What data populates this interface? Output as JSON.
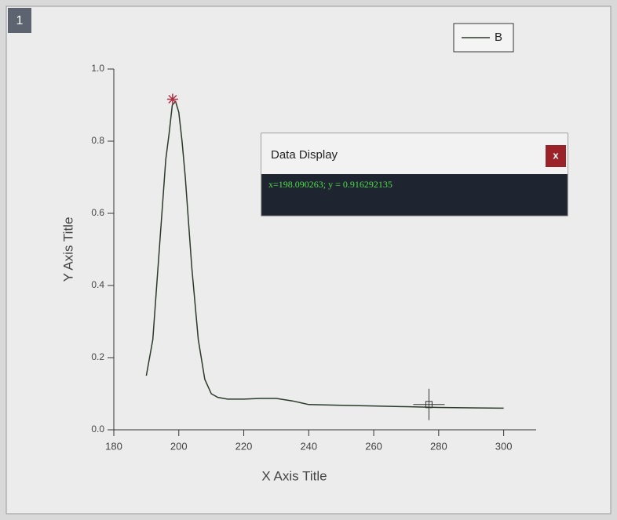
{
  "chart_data": {
    "type": "line",
    "window_tag": "1",
    "x_label": "X Axis Title",
    "y_label": "Y Axis Title",
    "x": [
      190,
      192,
      194,
      196,
      197,
      198,
      199,
      200,
      201,
      202,
      204,
      206,
      208,
      210,
      212,
      215,
      220,
      225,
      230,
      235,
      240,
      250,
      260,
      270,
      280,
      290,
      300
    ],
    "series": [
      {
        "name": "B",
        "color": "#2b3a2b",
        "values": [
          0.15,
          0.25,
          0.5,
          0.75,
          0.82,
          0.9,
          0.91,
          0.88,
          0.8,
          0.7,
          0.45,
          0.25,
          0.14,
          0.1,
          0.09,
          0.085,
          0.085,
          0.087,
          0.087,
          0.08,
          0.07,
          0.068,
          0.066,
          0.064,
          0.062,
          0.061,
          0.06
        ]
      }
    ],
    "xlim": [
      180,
      310
    ],
    "ylim": [
      0,
      1
    ],
    "xticks": [
      180,
      200,
      220,
      240,
      260,
      280,
      300
    ],
    "yticks": [
      {
        "value": 0,
        "label": "0.0"
      },
      0.2,
      0.4,
      0.6,
      0.8,
      {
        "value": 1,
        "label": "1.0"
      }
    ],
    "legend": "top-right",
    "marker": {
      "x": 198.090263,
      "y": 0.916292135,
      "color": "#b03040"
    },
    "cursor": {
      "x": 277,
      "y": 0.07
    }
  },
  "data_display": {
    "title": "Data Display",
    "close": "x",
    "text": "x=198.090263; y = 0.916292135"
  }
}
